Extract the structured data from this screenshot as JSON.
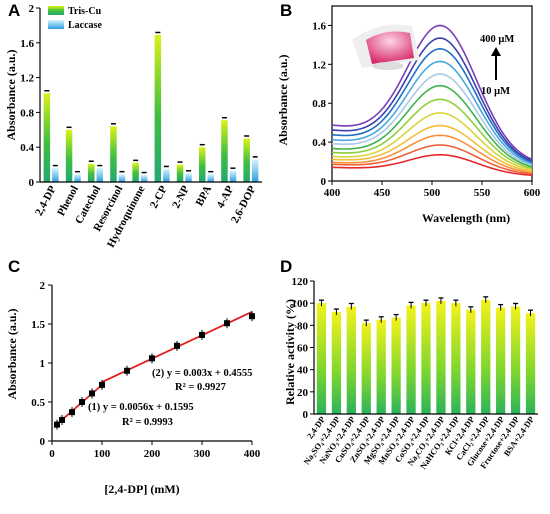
{
  "panels": {
    "A": "A",
    "B": "B",
    "C": "C",
    "D": "D"
  },
  "chart_data": [
    {
      "panel": "A",
      "type": "bar",
      "ylabel": "Absorbance (a.u.)",
      "ylim": [
        0,
        2
      ],
      "yticks": [
        "0",
        "0.4",
        "0.8",
        "1.2",
        "1.6",
        "2"
      ],
      "categories": [
        "2,4-DP",
        "Phenol",
        "Catechol",
        "Resorcinol",
        "Hydroquinone",
        "2-CP",
        "2-NP",
        "BPA",
        "4-AP",
        "2,6-DOP"
      ],
      "legend_position": "top-left",
      "series": [
        {
          "name": "Tris-Cu",
          "color": "#3fbf3f",
          "values": [
            1.02,
            0.6,
            0.21,
            0.64,
            0.22,
            1.69,
            0.2,
            0.4,
            0.71,
            0.5
          ]
        },
        {
          "name": "Laccase",
          "color": "#3fa9e8",
          "values": [
            0.16,
            0.09,
            0.16,
            0.09,
            0.08,
            0.15,
            0.1,
            0.09,
            0.13,
            0.26
          ]
        }
      ]
    },
    {
      "panel": "B",
      "type": "line",
      "xlabel": "Wavelength (nm)",
      "ylabel": "Absorbance (a.u.)",
      "xlim": [
        400,
        600
      ],
      "ylim": [
        0,
        1.8
      ],
      "xticks": [
        "400",
        "450",
        "500",
        "550",
        "600"
      ],
      "yticks": [
        "0",
        "0.4",
        "0.8",
        "1.2",
        "1.6"
      ],
      "annotations": {
        "high": "400 μM",
        "low": "10 μM"
      },
      "peak_x": 508,
      "series_style": [
        {
          "peak": 0.27,
          "base": 0.14,
          "end": 0.05,
          "color": "#e8292b"
        },
        {
          "peak": 0.37,
          "base": 0.17,
          "end": 0.06,
          "color": "#f2603a"
        },
        {
          "peak": 0.47,
          "base": 0.19,
          "end": 0.07,
          "color": "#f7923c"
        },
        {
          "peak": 0.57,
          "base": 0.22,
          "end": 0.08,
          "color": "#f4bf3a"
        },
        {
          "peak": 0.7,
          "base": 0.25,
          "end": 0.09,
          "color": "#d9d63a"
        },
        {
          "peak": 0.84,
          "base": 0.29,
          "end": 0.1,
          "color": "#8fcf3c"
        },
        {
          "peak": 0.98,
          "base": 0.33,
          "end": 0.11,
          "color": "#3fb34a"
        },
        {
          "peak": 1.1,
          "base": 0.38,
          "end": 0.12,
          "color": "#a9c9e6"
        },
        {
          "peak": 1.23,
          "base": 0.42,
          "end": 0.13,
          "color": "#4aa8e0"
        },
        {
          "peak": 1.36,
          "base": 0.47,
          "end": 0.14,
          "color": "#1f6fc0"
        },
        {
          "peak": 1.47,
          "base": 0.52,
          "end": 0.15,
          "color": "#3b3fb0"
        },
        {
          "peak": 1.6,
          "base": 0.57,
          "end": 0.16,
          "color": "#7a3fb5"
        }
      ]
    },
    {
      "panel": "C",
      "type": "scatter",
      "xlabel": "[2,4-DP] (mM)",
      "ylabel": "Absorbance (a.u.)",
      "xlim": [
        0,
        400
      ],
      "ylim": [
        0,
        2
      ],
      "xticks": [
        "0",
        "100",
        "200",
        "300",
        "400"
      ],
      "yticks": [
        "0",
        "0.5",
        "1",
        "1.5",
        "2"
      ],
      "points": [
        {
          "x": 10,
          "y": 0.21
        },
        {
          "x": 20,
          "y": 0.27
        },
        {
          "x": 40,
          "y": 0.37
        },
        {
          "x": 60,
          "y": 0.5
        },
        {
          "x": 80,
          "y": 0.61
        },
        {
          "x": 100,
          "y": 0.72
        },
        {
          "x": 150,
          "y": 0.9
        },
        {
          "x": 200,
          "y": 1.06
        },
        {
          "x": 250,
          "y": 1.22
        },
        {
          "x": 300,
          "y": 1.36
        },
        {
          "x": 350,
          "y": 1.51
        },
        {
          "x": 400,
          "y": 1.6
        }
      ],
      "fit1": {
        "x": [
          10,
          100
        ],
        "y": [
          0.2155,
          0.7195
        ]
      },
      "fit2": {
        "x": [
          100,
          400
        ],
        "y": [
          0.7555,
          1.6555
        ]
      },
      "fit_color": "#e02020",
      "annotations": {
        "eq1": "(1) y = 0.0056x + 0.1595",
        "r1": "R² = 0.9993",
        "eq2": "(2) y = 0.003x + 0.4555",
        "r2": "R² = 0.9927"
      }
    },
    {
      "panel": "D",
      "type": "bar",
      "ylabel": "Relative activity (%)",
      "ylim": [
        0,
        120
      ],
      "yticks": [
        "0",
        "20",
        "40",
        "60",
        "80",
        "100",
        "120"
      ],
      "categories": [
        "2,4-DP",
        "Na₂SO₄+2,4-DP",
        "NaNO₃+2,4-DP",
        "CuSO₄+2,4-DP",
        "ZnSO₄+2,4-DP",
        "MgSO₄+2,4-DP",
        "MnSO₄+2,4-DP",
        "CoSO₄+2,4-DP",
        "Na₂CO₃+2,4-DP",
        "NaHCO₃+2,4-DP",
        "KCl+2,4-DP",
        "CaCl₂+2,4-DP",
        "Glucose+2,4-DP",
        "Fructose+2,4-DP",
        "BSA+2,4-DP"
      ],
      "values": [
        100,
        92,
        97,
        82,
        85,
        87,
        98,
        100,
        102,
        100,
        94,
        103,
        96,
        97,
        91
      ]
    }
  ]
}
